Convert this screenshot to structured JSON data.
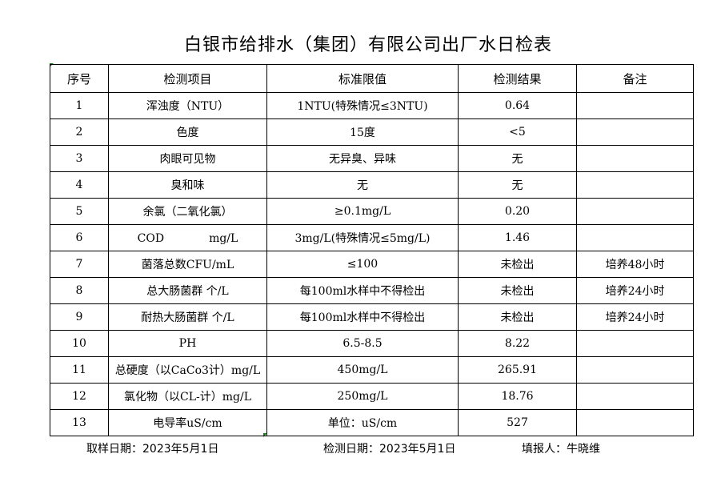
{
  "title": "白银市给排水（集团）有限公司出厂水日检表",
  "headers": [
    "序号",
    "检测项目",
    "标准限值",
    "检测结果",
    "备注"
  ],
  "rows": [
    [
      "1",
      "浑浊度（NTU）",
      "1NTU(特殊情况≤3NTU)",
      "0.64",
      ""
    ],
    [
      "2",
      "色度",
      "15度",
      "<5",
      ""
    ],
    [
      "3",
      "肉眼可见物",
      "无异臭、异味",
      "无",
      ""
    ],
    [
      "4",
      "臭和味",
      "无",
      "无",
      ""
    ],
    [
      "5",
      "余氯（二氧化氯）",
      "≥0.1mg/L",
      "0.20",
      ""
    ],
    [
      "6",
      "COD　　　　mg/L",
      "3mg/L(特殊情况≤5mg/L)",
      "1.46",
      ""
    ],
    [
      "7",
      "菌落总数CFU/mL",
      "≤100",
      "未检出",
      "培养48小时"
    ],
    [
      "8",
      "总大肠菌群 个/L",
      "每100ml水样中不得检出",
      "未检出",
      "培养24小时"
    ],
    [
      "9",
      "耐热大肠菌群 个/L",
      "每100ml水样中不得检出",
      "未检出",
      "培养24小时"
    ],
    [
      "10",
      "PH",
      "6.5-8.5",
      "8.22",
      ""
    ],
    [
      "11",
      "总硬度（以CaCo3计）mg/L",
      "450mg/L",
      "265.91",
      ""
    ],
    [
      "12",
      "氯化物（以CL-计）mg/L",
      "250mg/L",
      "18.76",
      ""
    ],
    [
      "13",
      "电导率uS/cm",
      "单位：uS/cm",
      "527",
      ""
    ]
  ],
  "footer": {
    "sampling_date": "取样日期：2023年5月1日",
    "testing_date": "检测日期：2023年5月1日",
    "reporter": "填报人：牛晓维"
  }
}
